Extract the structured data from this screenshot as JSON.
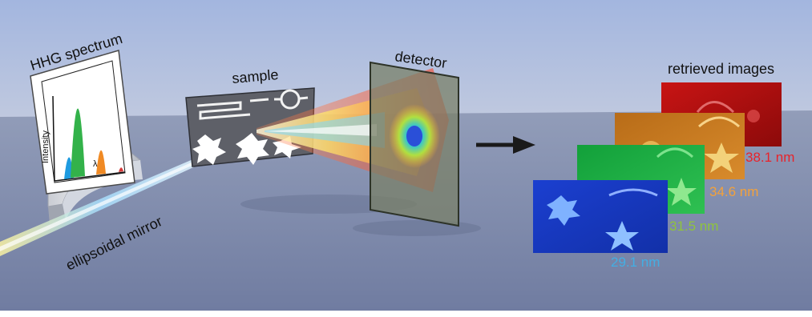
{
  "labels": {
    "hhg_spectrum": "HHG spectrum",
    "intensity_axis": "Intensity",
    "lambda_axis": "λ",
    "sample": "sample",
    "detector": "detector",
    "retrieved_images": "retrieved images",
    "ellipsoidal_mirror": "ellipsoidal mirror"
  },
  "spectrum_peaks": [
    {
      "color": "#1e9be0",
      "height": 0.3
    },
    {
      "color": "#33b24a",
      "height": 1.0
    },
    {
      "color": "#f08a24",
      "height": 0.35
    },
    {
      "color": "#d63a3a",
      "height": 0.06
    }
  ],
  "wavelengths": [
    {
      "label": "38.1 nm",
      "color": "#e8232a"
    },
    {
      "label": "34.6 nm",
      "color": "#f3a13b"
    },
    {
      "label": "31.5 nm",
      "color": "#8fc43c"
    },
    {
      "label": "29.1 nm",
      "color": "#43aee3"
    }
  ],
  "colors": {
    "wall_top": "#a3b6df",
    "wall_bottom": "#c3cce0",
    "floor_top": "#8c97b4",
    "floor_bottom": "#6e7aa0",
    "arrow": "#1a1a1a"
  }
}
